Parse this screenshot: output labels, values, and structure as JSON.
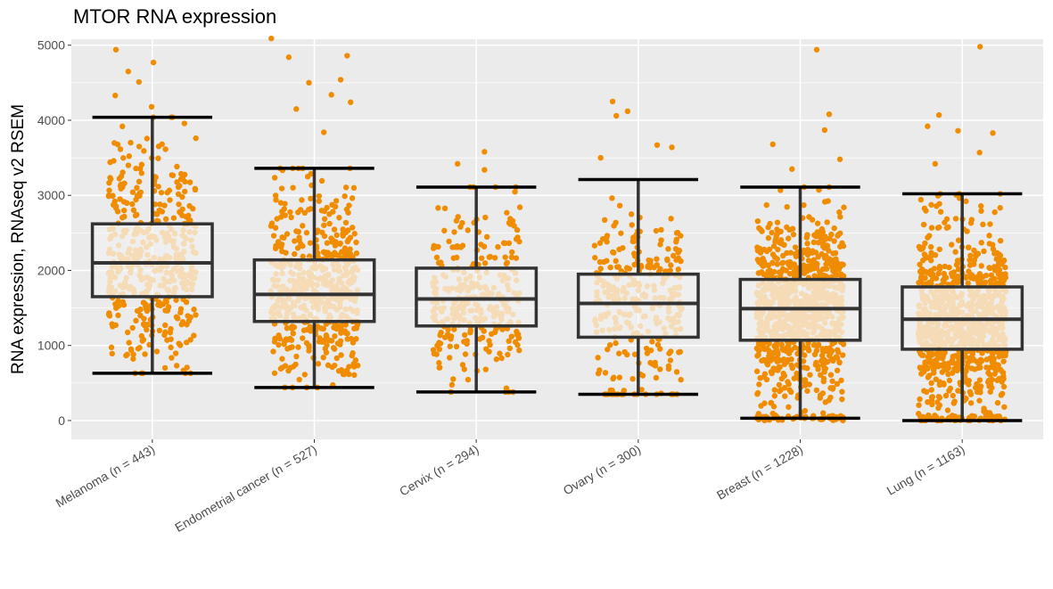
{
  "chart_data": {
    "type": "boxplot",
    "title": "MTOR RNA expression",
    "xlabel": "",
    "ylabel": "RNA expression, RNAseq v2 RSEM",
    "ylim": [
      -250,
      5080
    ],
    "yticks": [
      0,
      1000,
      2000,
      3000,
      4000,
      5000
    ],
    "categories": [
      "Melanoma (n = 443)",
      "Endometrial cancer (n = 527)",
      "Cervix (n = 294)",
      "Ovary (n = 300)",
      "Breast (n = 1228)",
      "Lung (n = 1163)"
    ],
    "boxes": [
      {
        "n": 443,
        "whisker_low": 630,
        "q1": 1650,
        "median": 2100,
        "q3": 2620,
        "whisker_high": 4040
      },
      {
        "n": 527,
        "whisker_low": 440,
        "q1": 1320,
        "median": 1680,
        "q3": 2140,
        "whisker_high": 3360
      },
      {
        "n": 294,
        "whisker_low": 380,
        "q1": 1260,
        "median": 1620,
        "q3": 2030,
        "whisker_high": 3110
      },
      {
        "n": 300,
        "whisker_low": 350,
        "q1": 1110,
        "median": 1560,
        "q3": 1950,
        "whisker_high": 3210
      },
      {
        "n": 1228,
        "whisker_low": 30,
        "q1": 1070,
        "median": 1490,
        "q3": 1880,
        "whisker_high": 3110
      },
      {
        "n": 1163,
        "whisker_low": 0,
        "q1": 950,
        "median": 1350,
        "q3": 1780,
        "whisker_high": 3020
      }
    ],
    "outliers": [
      [
        4940,
        4770,
        4650,
        4510,
        4330,
        4180
      ],
      [
        5090,
        4860,
        4840,
        4540,
        4500,
        4340,
        4240,
        4150,
        3840
      ],
      [
        3580,
        3420,
        3340
      ],
      [
        4250,
        4120,
        4060,
        3670,
        3640,
        3500
      ],
      [
        4940,
        4080,
        3870,
        3680,
        3480,
        3350
      ],
      [
        4980,
        4070,
        3920,
        3860,
        3830,
        3570,
        3420
      ]
    ],
    "colors": {
      "points_outside_box": "#f08c00",
      "points_inside_box": "#f8c070",
      "box_fill": "#f2f2f2",
      "box_line": "#333333",
      "panel_bg": "#ebebeb",
      "grid": "#ffffff"
    },
    "grid": true,
    "legend": "none"
  }
}
